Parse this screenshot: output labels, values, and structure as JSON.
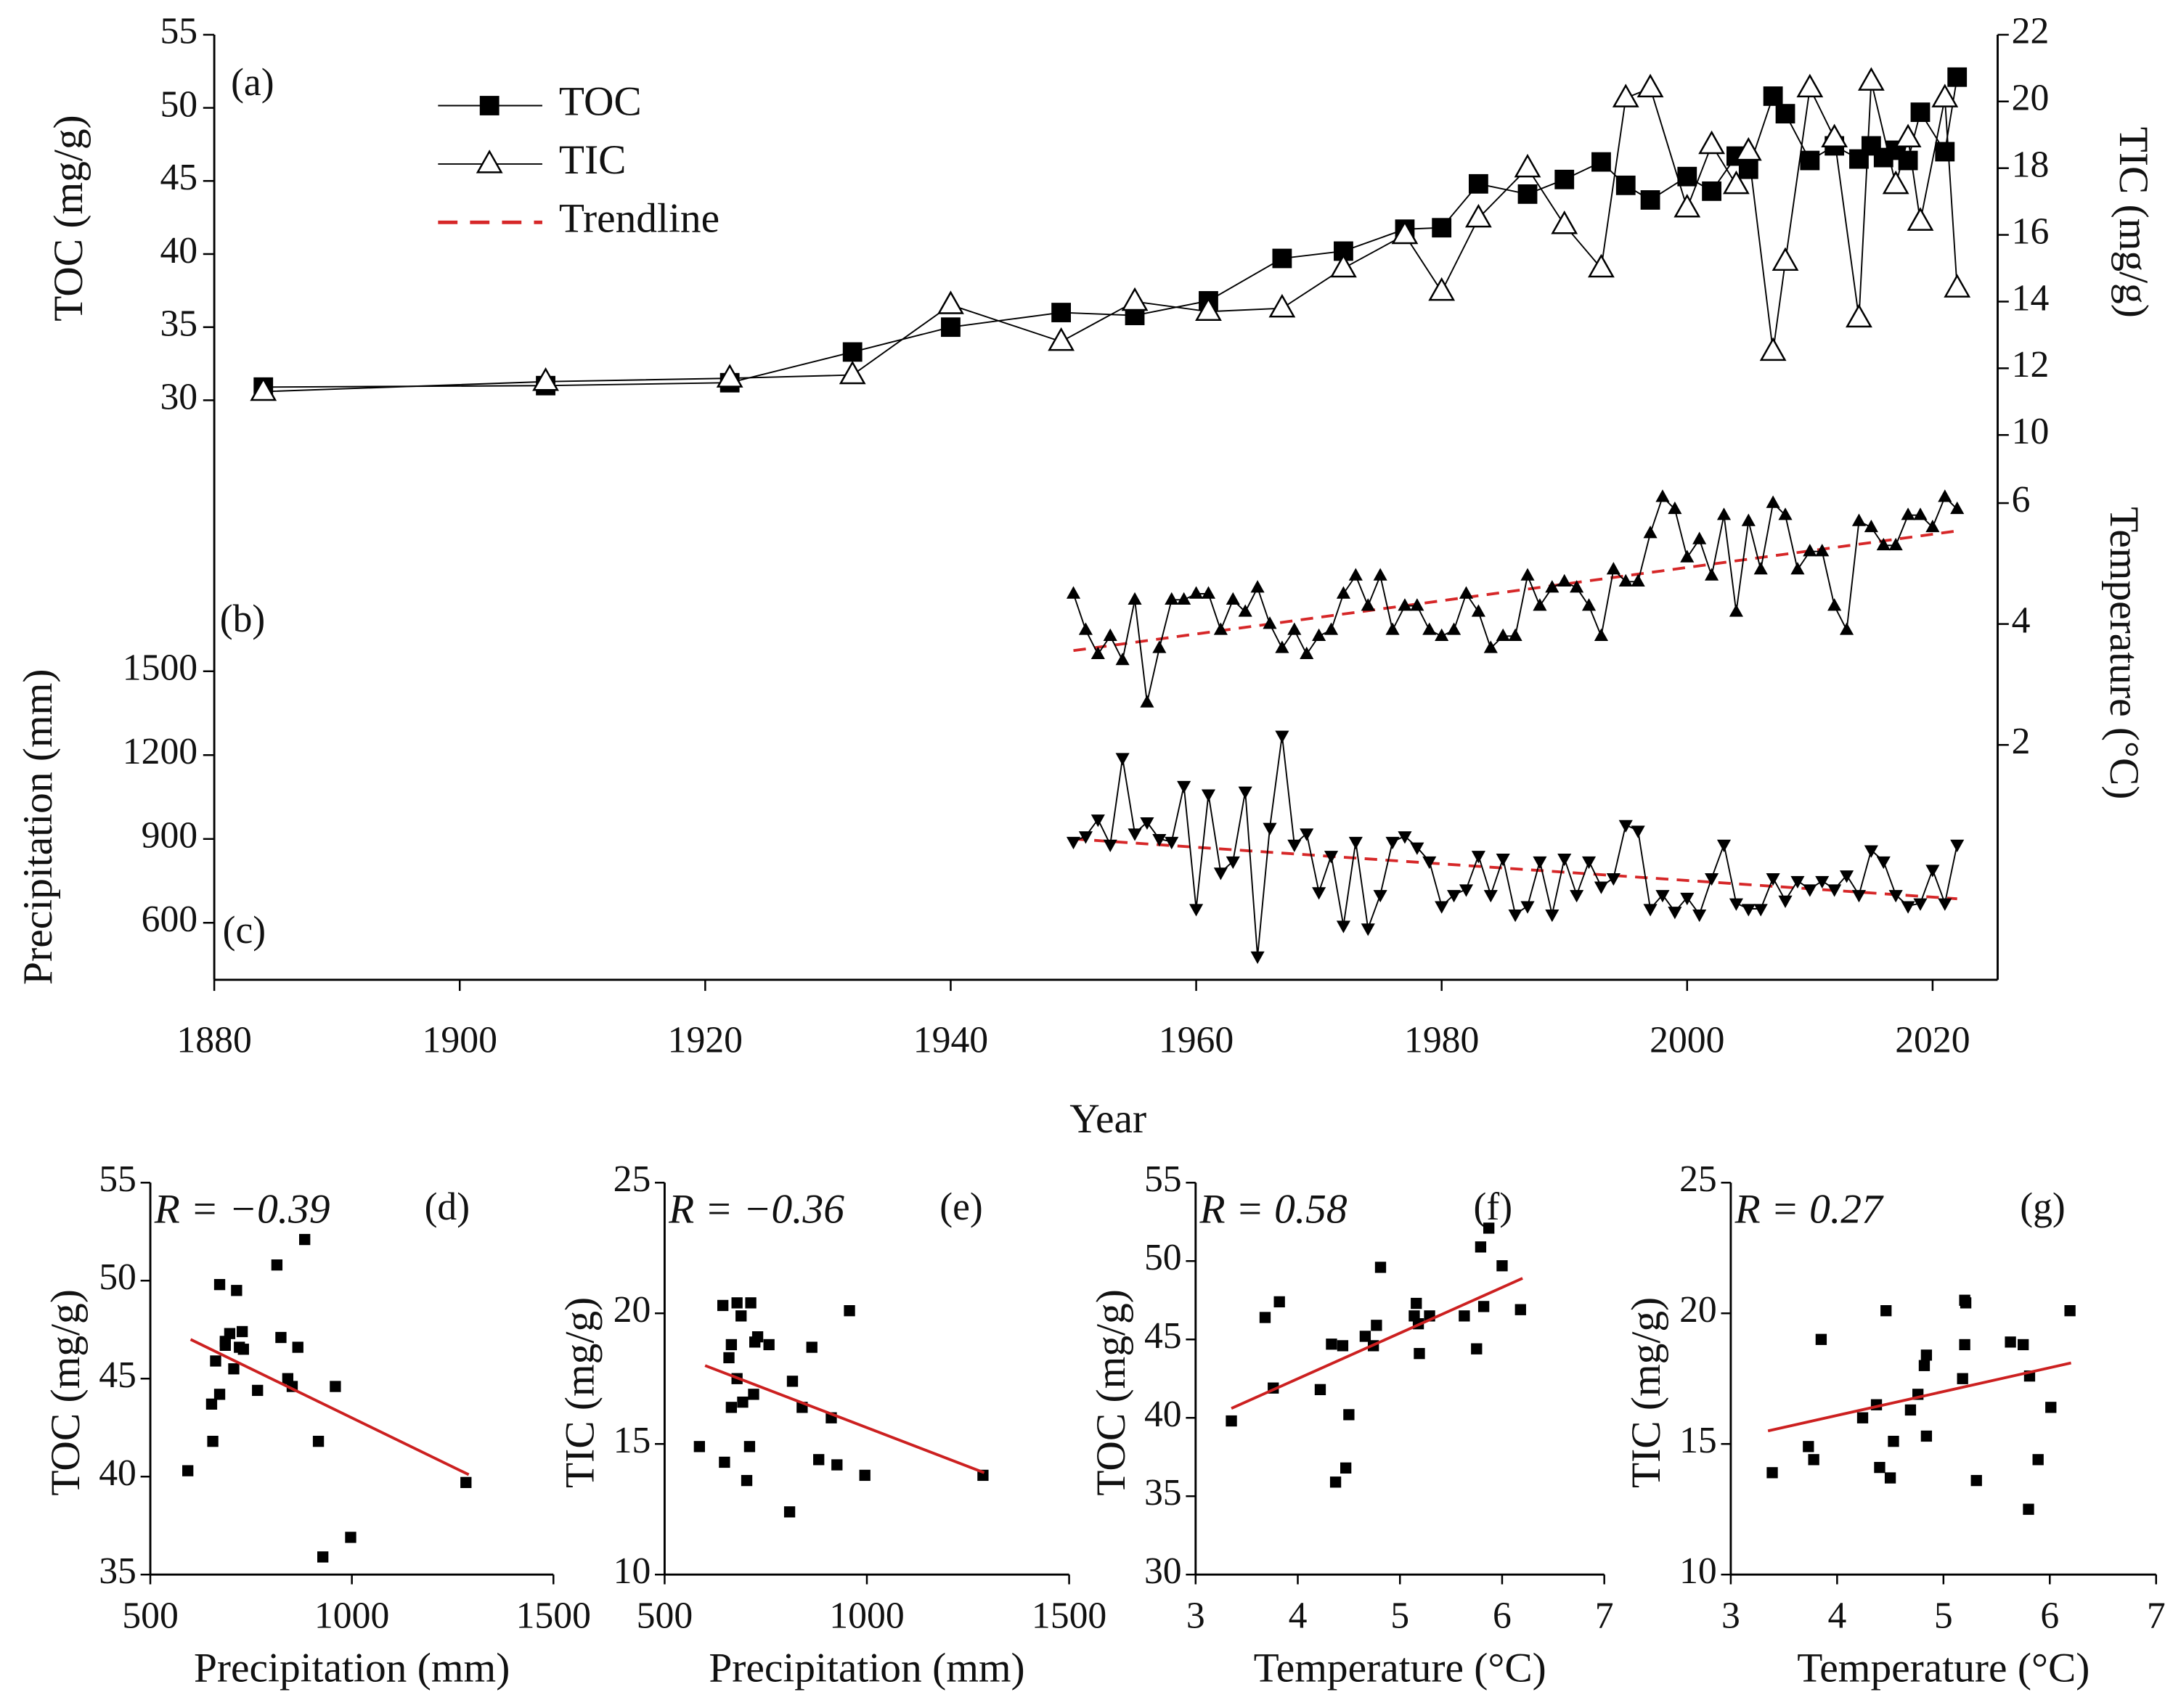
{
  "chart_data": [
    {
      "type": "line",
      "panel_labels": [
        "(a)",
        "(b)",
        "(c)"
      ],
      "xlabel": "Year",
      "xlim": [
        1880,
        2025.3
      ],
      "xticks": [
        1880,
        1900,
        1920,
        1940,
        1960,
        1980,
        2000,
        2020
      ],
      "ylabel": "TOC (mg/g)",
      "ylim": [
        30,
        55
      ],
      "yticks": [
        30,
        35,
        40,
        45,
        50,
        55
      ],
      "y2label": "TIC (mg/g)",
      "y2lim": [
        10,
        22
      ],
      "y2ticks": [
        10,
        12,
        14,
        16,
        18,
        20,
        22
      ],
      "y3label": "Temperature (°C)",
      "y3lim": [
        2,
        6
      ],
      "y3ticks": [
        2,
        4,
        6
      ],
      "y4label": "Precipitation (mm)",
      "y4lim": [
        600,
        1500
      ],
      "y4ticks": [
        600,
        900,
        1200,
        1500
      ],
      "series": [
        {
          "name": "TOC",
          "color": "#000000",
          "marker": "square",
          "axis": "y",
          "x": [
            1884,
            1907,
            1922,
            1932,
            1940,
            1949,
            1955,
            1961,
            1967,
            1972,
            1977,
            1980,
            1983,
            1987,
            1990,
            1993,
            1995,
            1997,
            2000,
            2002,
            2004,
            2005,
            2007,
            2008,
            2010,
            2012,
            2014,
            2015,
            2016,
            2017,
            2018,
            2019,
            2021,
            2022
          ],
          "values": [
            30.9,
            31.0,
            31.2,
            33.3,
            35.0,
            36.0,
            35.8,
            36.8,
            39.7,
            40.2,
            41.7,
            41.8,
            44.8,
            44.1,
            45.1,
            46.3,
            44.7,
            43.7,
            45.3,
            44.3,
            46.7,
            45.8,
            50.8,
            49.6,
            46.4,
            47.4,
            46.5,
            47.4,
            46.6,
            47.1,
            46.4,
            49.7,
            47.0,
            52.1
          ]
        },
        {
          "name": "TIC",
          "color": "#000000",
          "marker": "triangle-open",
          "axis": "y2",
          "x": [
            1884,
            1907,
            1922,
            1932,
            1940,
            1949,
            1955,
            1961,
            1967,
            1972,
            1977,
            1980,
            1983,
            1987,
            1990,
            1993,
            1995,
            1997,
            2000,
            2002,
            2004,
            2005,
            2007,
            2008,
            2010,
            2012,
            2014,
            2015,
            2017,
            2018,
            2019,
            2021,
            2022
          ],
          "values": [
            11.3,
            11.6,
            11.7,
            11.8,
            13.9,
            12.8,
            14.0,
            13.7,
            13.8,
            15.0,
            16.0,
            14.3,
            16.5,
            18.0,
            16.3,
            15.0,
            20.1,
            20.4,
            16.8,
            18.7,
            17.5,
            18.5,
            12.5,
            15.2,
            20.4,
            18.9,
            13.5,
            20.6,
            17.5,
            18.9,
            16.4,
            20.1,
            14.4
          ]
        },
        {
          "color": "#000000",
          "marker": "triangle",
          "axis": "y3",
          "x": [
            1950,
            1951,
            1952,
            1953,
            1954,
            1955,
            1956,
            1957,
            1958,
            1959,
            1960,
            1961,
            1962,
            1963,
            1964,
            1965,
            1966,
            1967,
            1968,
            1969,
            1970,
            1971,
            1972,
            1973,
            1974,
            1975,
            1976,
            1977,
            1978,
            1979,
            1980,
            1981,
            1982,
            1983,
            1984,
            1985,
            1986,
            1987,
            1988,
            1989,
            1990,
            1991,
            1992,
            1993,
            1994,
            1995,
            1996,
            1997,
            1998,
            1999,
            2000,
            2001,
            2002,
            2003,
            2004,
            2005,
            2006,
            2007,
            2008,
            2009,
            2010,
            2011,
            2012,
            2013,
            2014,
            2015,
            2016,
            2017,
            2018,
            2019,
            2020,
            2021,
            2022
          ],
          "values": [
            4.5,
            3.9,
            3.5,
            3.8,
            3.4,
            4.4,
            2.7,
            3.6,
            4.4,
            4.4,
            4.5,
            4.5,
            3.9,
            4.4,
            4.2,
            4.6,
            4.0,
            3.6,
            3.9,
            3.5,
            3.8,
            3.9,
            4.5,
            4.8,
            4.3,
            4.8,
            3.9,
            4.3,
            4.3,
            3.9,
            3.8,
            3.9,
            4.5,
            4.2,
            3.6,
            3.8,
            3.8,
            4.8,
            4.3,
            4.6,
            4.7,
            4.6,
            4.3,
            3.8,
            4.9,
            4.7,
            4.7,
            5.5,
            6.1,
            5.9,
            5.1,
            5.4,
            4.8,
            5.8,
            4.2,
            5.7,
            4.9,
            6.0,
            5.8,
            4.9,
            5.2,
            5.2,
            4.3,
            3.9,
            5.7,
            5.6,
            5.3,
            5.3,
            5.8,
            5.8,
            5.6,
            6.1,
            5.9
          ]
        },
        {
          "color": "#000000",
          "marker": "triangle-down",
          "axis": "y4",
          "x": [
            1950,
            1951,
            1952,
            1953,
            1954,
            1955,
            1956,
            1957,
            1958,
            1959,
            1960,
            1961,
            1962,
            1963,
            1964,
            1965,
            1966,
            1967,
            1968,
            1969,
            1970,
            1971,
            1972,
            1973,
            1974,
            1975,
            1976,
            1977,
            1978,
            1979,
            1980,
            1981,
            1982,
            1983,
            1984,
            1985,
            1986,
            1987,
            1988,
            1989,
            1990,
            1991,
            1992,
            1993,
            1994,
            1995,
            1996,
            1997,
            1998,
            1999,
            2000,
            2001,
            2002,
            2003,
            2004,
            2005,
            2006,
            2007,
            2008,
            2009,
            2010,
            2011,
            2012,
            2013,
            2014,
            2015,
            2016,
            2017,
            2018,
            2019,
            2020,
            2021,
            2022
          ],
          "values": [
            890,
            910,
            970,
            880,
            1190,
            920,
            960,
            900,
            890,
            1090,
            650,
            1060,
            780,
            820,
            1070,
            480,
            940,
            1270,
            880,
            920,
            710,
            840,
            590,
            890,
            580,
            700,
            890,
            910,
            870,
            820,
            660,
            700,
            720,
            840,
            700,
            830,
            630,
            660,
            820,
            630,
            830,
            700,
            820,
            730,
            760,
            950,
            930,
            650,
            700,
            640,
            690,
            630,
            760,
            880,
            670,
            650,
            650,
            760,
            680,
            750,
            720,
            750,
            720,
            770,
            700,
            860,
            820,
            700,
            660,
            670,
            790,
            670,
            880
          ]
        }
      ],
      "trendline": {
        "name": "Trendline",
        "color": "#d62728",
        "lines": [
          {
            "axis": "y3",
            "x": [
              1950,
              2022
            ],
            "values": [
              3.56,
              5.54
            ]
          },
          {
            "axis": "y4",
            "x": [
              1950,
              2022
            ],
            "values": [
              900,
              686
            ]
          }
        ]
      }
    },
    {
      "type": "scatter",
      "panel_label": "(d)",
      "annotation": "R = −0.39",
      "xlabel": "Precipitation (mm)",
      "ylabel": "TOC (mg/g)",
      "xlim": [
        500,
        1500
      ],
      "xticks": [
        500,
        1000,
        1500
      ],
      "ylim": [
        35,
        55
      ],
      "yticks": [
        35,
        40,
        45,
        50,
        55
      ],
      "color": "#000000",
      "fit_color": "#cc2020",
      "x": [
        593,
        655,
        652,
        672,
        662,
        686,
        672,
        686,
        697,
        707,
        714,
        721,
        728,
        731,
        766,
        814,
        824,
        841,
        852,
        866,
        883,
        917,
        928,
        959,
        997,
        1283
      ],
      "values": [
        40.3,
        41.8,
        43.7,
        44.2,
        45.9,
        46.7,
        49.8,
        46.9,
        47.3,
        45.5,
        49.5,
        46.6,
        47.4,
        46.5,
        44.4,
        50.8,
        47.1,
        45.0,
        44.6,
        46.6,
        52.1,
        41.8,
        35.9,
        44.6,
        36.9,
        39.7
      ],
      "fit": {
        "x": [
          600,
          1290
        ],
        "values": [
          47.0,
          40.1
        ]
      }
    },
    {
      "type": "scatter",
      "panel_label": "(e)",
      "annotation": "R = −0.36",
      "xlabel": "Precipitation (mm)",
      "ylabel": "TIC (mg/g)",
      "xlim": [
        500,
        1500
      ],
      "xticks": [
        500,
        1000,
        1500
      ],
      "ylim": [
        10,
        25
      ],
      "yticks": [
        10,
        15,
        20,
        25
      ],
      "color": "#000000",
      "fit_color": "#cc2020",
      "x": [
        586,
        648,
        644,
        659,
        665,
        665,
        679,
        679,
        689,
        693,
        703,
        710,
        713,
        720,
        723,
        730,
        758,
        809,
        816,
        840,
        864,
        881,
        912,
        926,
        957,
        995,
        1287
      ],
      "values": [
        14.9,
        14.3,
        20.3,
        18.3,
        18.8,
        16.4,
        20.4,
        17.5,
        19.9,
        16.6,
        13.6,
        14.9,
        20.4,
        16.9,
        18.9,
        19.1,
        18.8,
        12.4,
        17.4,
        16.4,
        18.7,
        14.4,
        16.0,
        14.2,
        20.1,
        13.8,
        13.8
      ],
      "fit": {
        "x": [
          600,
          1290
        ],
        "values": [
          18.0,
          13.9
        ]
      }
    },
    {
      "type": "scatter",
      "panel_label": "(f)",
      "annotation": "R = 0.58",
      "xlabel": "Temperature (°C)",
      "ylabel": "TOC (mg/g)",
      "xlim": [
        3,
        7
      ],
      "xticks": [
        3,
        4,
        5,
        6,
        7
      ],
      "ylim": [
        30,
        55
      ],
      "yticks": [
        30,
        35,
        40,
        45,
        50,
        55
      ],
      "color": "#000000",
      "fit_color": "#cc2020",
      "x": [
        3.35,
        3.68,
        3.76,
        3.82,
        4.22,
        4.33,
        4.37,
        4.44,
        4.47,
        4.5,
        4.66,
        4.74,
        4.77,
        4.81,
        5.14,
        5.16,
        5.18,
        5.19,
        5.29,
        5.63,
        5.75,
        5.79,
        5.82,
        5.87,
        6.0,
        6.18
      ],
      "values": [
        39.8,
        46.4,
        41.9,
        47.4,
        41.8,
        44.7,
        35.9,
        44.6,
        36.8,
        40.2,
        45.2,
        44.6,
        45.9,
        49.6,
        46.5,
        47.3,
        46.0,
        44.1,
        46.5,
        46.5,
        44.4,
        50.9,
        47.1,
        52.1,
        49.7,
        46.9
      ],
      "fit": {
        "x": [
          3.35,
          6.2
        ],
        "values": [
          40.6,
          48.9
        ]
      }
    },
    {
      "type": "scatter",
      "panel_label": "(g)",
      "annotation": "R = 0.27",
      "xlabel": "Temperature (°C)",
      "ylabel": "TIC (mg/g)",
      "xlim": [
        3,
        7
      ],
      "xticks": [
        3,
        4,
        5,
        6,
        7
      ],
      "ylim": [
        10,
        25
      ],
      "yticks": [
        10,
        15,
        20,
        25
      ],
      "color": "#000000",
      "fit_color": "#cc2020",
      "x": [
        3.39,
        3.73,
        3.78,
        3.85,
        4.24,
        4.37,
        4.4,
        4.46,
        4.5,
        4.53,
        4.69,
        4.76,
        4.82,
        4.84,
        4.84,
        5.18,
        5.2,
        5.2,
        5.21,
        5.31,
        5.63,
        5.75,
        5.81,
        5.8,
        5.89,
        6.01,
        6.19
      ],
      "values": [
        13.9,
        14.9,
        14.4,
        19.0,
        16.0,
        16.5,
        14.1,
        20.1,
        13.7,
        15.1,
        16.3,
        16.9,
        18.0,
        18.4,
        15.3,
        17.5,
        18.8,
        20.5,
        20.4,
        13.6,
        18.9,
        18.8,
        17.6,
        12.5,
        14.4,
        16.4,
        20.1
      ],
      "fit": {
        "x": [
          3.35,
          6.2
        ],
        "values": [
          15.5,
          18.1
        ]
      }
    }
  ]
}
